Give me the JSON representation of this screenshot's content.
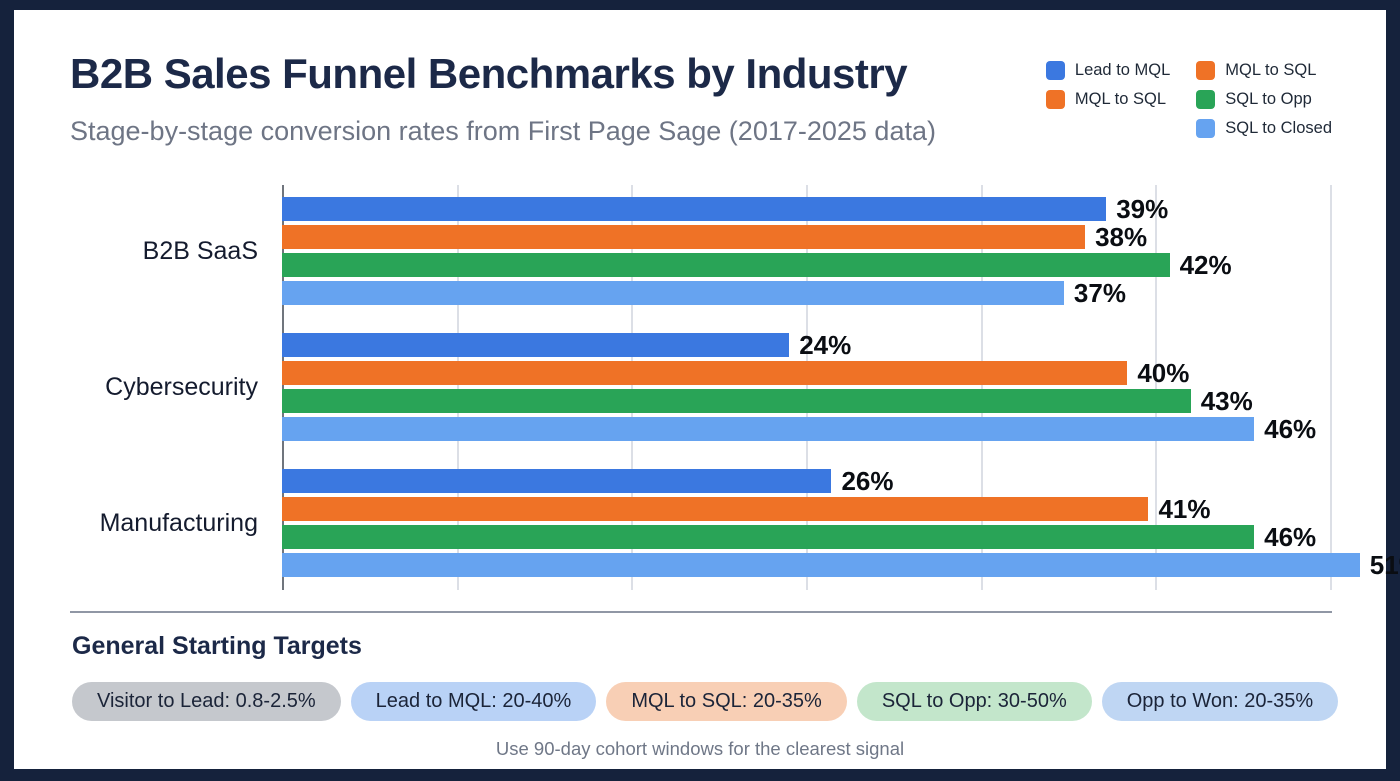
{
  "header": {
    "title": "B2B Sales Funnel Benchmarks by Industry",
    "subtitle": "Stage-by-stage conversion rates from First Page Sage (2017-2025 data)"
  },
  "legend": {
    "position": "top-right",
    "columns": [
      [
        {
          "label": "Lead to MQL",
          "color": "#3b78e0"
        },
        {
          "label": "MQL to SQL",
          "color": "#ef7226"
        }
      ],
      [
        {
          "label": "MQL to SQL",
          "color": "#ef7226"
        },
        {
          "label": "SQL to Opp",
          "color": "#29a457"
        },
        {
          "label": "SQL to Closed",
          "color": "#66a3f0"
        }
      ]
    ]
  },
  "chart_data": {
    "type": "bar",
    "orientation": "horizontal",
    "title": "B2B Sales Funnel Benchmarks by Industry",
    "categories": [
      "B2B SaaS",
      "Cybersecurity",
      "Manufacturing"
    ],
    "series": [
      {
        "name": "Lead to MQL",
        "color": "#3b78e0",
        "values": [
          39,
          24,
          26
        ]
      },
      {
        "name": "MQL to SQL",
        "color": "#ef7226",
        "values": [
          38,
          40,
          41
        ]
      },
      {
        "name": "SQL to Opp",
        "color": "#29a457",
        "values": [
          42,
          43,
          46
        ]
      },
      {
        "name": "SQL to Closed",
        "color": "#66a3f0",
        "values": [
          37,
          46,
          51
        ]
      }
    ],
    "value_suffix": "%",
    "xlim": [
      0,
      60
    ],
    "gridline_step": 10,
    "grid": true,
    "legend_position": "top-right"
  },
  "targets": {
    "heading": "General Starting Targets",
    "pills": [
      {
        "label": "Visitor to Lead: 0.8-2.5%",
        "bg": "#c5c8cd"
      },
      {
        "label": "Lead to MQL: 20-40%",
        "bg": "#b9d2f6"
      },
      {
        "label": "MQL to SQL: 20-35%",
        "bg": "#f8cfb5"
      },
      {
        "label": "SQL to Opp: 30-50%",
        "bg": "#c3e6cb"
      },
      {
        "label": "Opp to Won: 20-35%",
        "bg": "#bfd6f3"
      }
    ]
  },
  "footer": {
    "note": "Use 90-day cohort windows for the clearest signal"
  },
  "theme": {
    "frame": "#15223c",
    "card": "#ffffff",
    "gridline": "#dcdfe6",
    "axis_line": "#70757d",
    "title_color": "#1c2948",
    "subtitle_color": "#6e7585",
    "value_label_color": "#0a0d12"
  }
}
